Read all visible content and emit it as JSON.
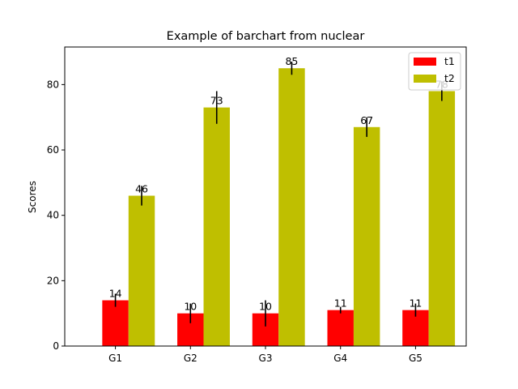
{
  "chart_data": {
    "type": "bar",
    "title": "Example of barchart from nuclear",
    "xlabel": "",
    "ylabel": "Scores",
    "categories": [
      "G1",
      "G2",
      "G3",
      "G4",
      "G5"
    ],
    "ylim": [
      0,
      91.5
    ],
    "yticks": [
      0,
      20,
      40,
      60,
      80
    ],
    "grid": false,
    "legend_position": "top-right",
    "series": [
      {
        "name": "t1",
        "color": "#ff0000",
        "values": [
          14,
          10,
          10,
          11,
          11
        ],
        "errors": [
          2,
          3,
          4,
          1,
          2
        ],
        "labels": [
          "14",
          "10",
          "10",
          "11",
          "11"
        ]
      },
      {
        "name": "t2",
        "color": "#bfbf00",
        "values": [
          46,
          73,
          85,
          67,
          78
        ],
        "errors": [
          3,
          5,
          2,
          3,
          3
        ],
        "labels": [
          "46",
          "73",
          "85",
          "67",
          "78"
        ]
      }
    ]
  }
}
